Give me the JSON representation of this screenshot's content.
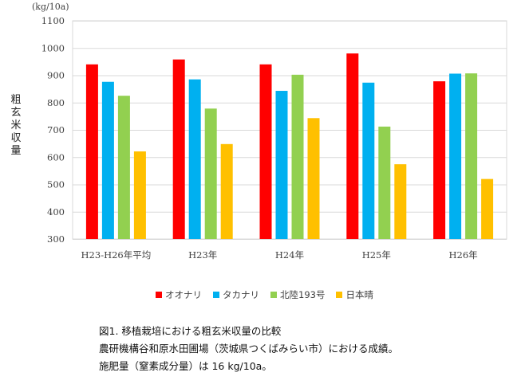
{
  "chart_data": {
    "type": "bar",
    "unit": "(kg/10a)",
    "ylabel": "粗玄米収量",
    "categories": [
      "H23-H26年平均",
      "H23年",
      "H24年",
      "H25年",
      "H26年"
    ],
    "ylim": [
      300,
      1100
    ],
    "yticks": [
      300,
      400,
      500,
      600,
      700,
      800,
      900,
      1000,
      1100
    ],
    "grid": true,
    "legend_position": "bottom",
    "series": [
      {
        "name": "オオナリ",
        "color": "#ff0000",
        "values": [
          940,
          958,
          940,
          980,
          878
        ]
      },
      {
        "name": "タカナリ",
        "color": "#00b0f0",
        "values": [
          876,
          885,
          843,
          873,
          906
        ]
      },
      {
        "name": "北陸193号",
        "color": "#92d050",
        "values": [
          825,
          778,
          902,
          712,
          907
        ]
      },
      {
        "name": "日本晴",
        "color": "#ffc000",
        "values": [
          621,
          648,
          743,
          574,
          520
        ]
      }
    ]
  },
  "caption": {
    "line1": "図1. 移植栽培における粗玄米収量の比較",
    "line2": "農研機構谷和原水田圃場（茨城県つくばみらい市）における成績。",
    "line3": "施肥量（窒素成分量）は 16 kg/10a。"
  }
}
